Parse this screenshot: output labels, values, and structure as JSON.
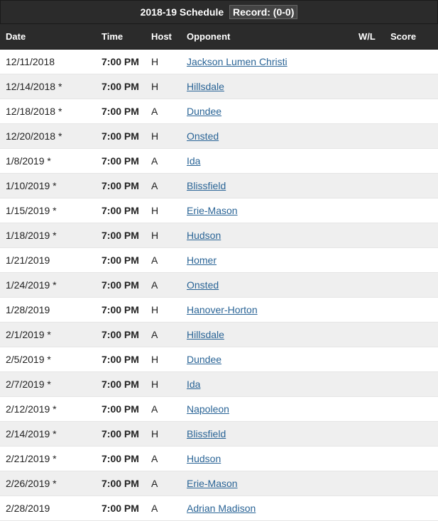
{
  "header": {
    "title_prefix": "2018-19 Schedule",
    "record_label": "Record: (0-0)"
  },
  "columns": {
    "date": "Date",
    "time": "Time",
    "host": "Host",
    "opponent": "Opponent",
    "wl": "W/L",
    "score": "Score"
  },
  "rows": [
    {
      "date": "12/11/2018",
      "time": "7:00 PM",
      "host": "H",
      "opponent": "Jackson Lumen Christi ",
      "wl": "",
      "score": ""
    },
    {
      "date": "12/14/2018 *",
      "time": "7:00 PM",
      "host": "H",
      "opponent": "Hillsdale ",
      "wl": "",
      "score": ""
    },
    {
      "date": "12/18/2018 *",
      "time": "7:00 PM",
      "host": "A",
      "opponent": "Dundee ",
      "wl": "",
      "score": ""
    },
    {
      "date": "12/20/2018 *",
      "time": "7:00 PM",
      "host": "H",
      "opponent": "Onsted ",
      "wl": "",
      "score": ""
    },
    {
      "date": "1/8/2019 *",
      "time": "7:00 PM",
      "host": "A",
      "opponent": "Ida ",
      "wl": "",
      "score": ""
    },
    {
      "date": "1/10/2019 *",
      "time": "7:00 PM",
      "host": "A",
      "opponent": "Blissfield ",
      "wl": "",
      "score": ""
    },
    {
      "date": "1/15/2019 *",
      "time": "7:00 PM",
      "host": "H",
      "opponent": "Erie-Mason ",
      "wl": "",
      "score": ""
    },
    {
      "date": "1/18/2019 *",
      "time": "7:00 PM",
      "host": "H",
      "opponent": "Hudson ",
      "wl": "",
      "score": ""
    },
    {
      "date": "1/21/2019",
      "time": "7:00 PM",
      "host": "A",
      "opponent": "Homer ",
      "wl": "",
      "score": ""
    },
    {
      "date": "1/24/2019 *",
      "time": "7:00 PM",
      "host": "A",
      "opponent": "Onsted ",
      "wl": "",
      "score": ""
    },
    {
      "date": "1/28/2019",
      "time": "7:00 PM",
      "host": "H",
      "opponent": "Hanover-Horton ",
      "wl": "",
      "score": ""
    },
    {
      "date": "2/1/2019 *",
      "time": "7:00 PM",
      "host": "A",
      "opponent": "Hillsdale ",
      "wl": "",
      "score": ""
    },
    {
      "date": "2/5/2019 *",
      "time": "7:00 PM",
      "host": "H",
      "opponent": "Dundee ",
      "wl": "",
      "score": ""
    },
    {
      "date": "2/7/2019 *",
      "time": "7:00 PM",
      "host": "H",
      "opponent": "Ida ",
      "wl": "",
      "score": ""
    },
    {
      "date": "2/12/2019 *",
      "time": "7:00 PM",
      "host": "A",
      "opponent": "Napoleon ",
      "wl": "",
      "score": ""
    },
    {
      "date": "2/14/2019 *",
      "time": "7:00 PM",
      "host": "H",
      "opponent": "Blissfield ",
      "wl": "",
      "score": ""
    },
    {
      "date": "2/21/2019 *",
      "time": "7:00 PM",
      "host": "A",
      "opponent": "Hudson ",
      "wl": "",
      "score": ""
    },
    {
      "date": "2/26/2019 *",
      "time": "7:00 PM",
      "host": "A",
      "opponent": "Erie-Mason ",
      "wl": "",
      "score": ""
    },
    {
      "date": "2/28/2019",
      "time": "7:00 PM",
      "host": "A",
      "opponent": "Adrian Madison ",
      "wl": "",
      "score": ""
    }
  ]
}
